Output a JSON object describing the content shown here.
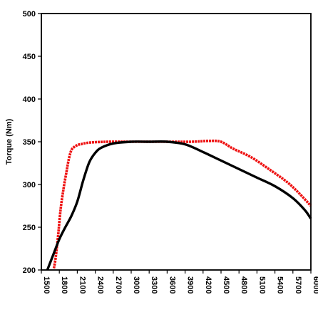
{
  "chart_data": {
    "type": "line",
    "title": "",
    "xlabel": "",
    "ylabel": "Torque (Nm)",
    "xlim": [
      1500,
      6000
    ],
    "ylim": [
      200,
      500
    ],
    "x_ticks": [
      1500,
      1800,
      2100,
      2400,
      2700,
      3000,
      3300,
      3600,
      3900,
      4200,
      4500,
      4800,
      5100,
      5400,
      5700,
      6000
    ],
    "x_tick_labels": [
      "1500",
      "1800",
      "2100",
      "2400",
      "2700",
      "3000",
      "3300",
      "3600",
      "3900",
      "4200",
      "4500",
      "4800",
      "5100",
      "5400",
      "5700",
      "6000"
    ],
    "y_ticks": [
      200,
      250,
      300,
      350,
      400,
      450,
      500
    ],
    "y_tick_labels": [
      "200",
      "250",
      "300",
      "350",
      "400",
      "450",
      "500"
    ],
    "grid": false,
    "legend": "none",
    "series": [
      {
        "color": "#ee1111",
        "x": [
          1710,
          1740,
          1780,
          1820,
          1870,
          1920,
          1960,
          2000,
          2050,
          2100,
          2150,
          2300,
          2600,
          3000,
          3500,
          4000,
          4300,
          4500,
          4700,
          5000,
          5300,
          5600,
          5800,
          6000
        ],
        "y": [
          202,
          215,
          240,
          270,
          295,
          315,
          330,
          340,
          344,
          346,
          347,
          349,
          350,
          350,
          350,
          350,
          351,
          350,
          342,
          332,
          318,
          303,
          290,
          275
        ]
      },
      {
        "color": "#000000",
        "x": [
          1600,
          1700,
          1800,
          1900,
          2000,
          2100,
          2200,
          2300,
          2400,
          2500,
          2700,
          3000,
          3300,
          3600,
          3900,
          4200,
          4500,
          4800,
          5100,
          5400,
          5700,
          5900,
          6000
        ],
        "y": [
          200,
          218,
          236,
          250,
          263,
          280,
          305,
          326,
          337,
          343,
          348,
          350,
          350,
          350,
          347,
          338,
          328,
          318,
          308,
          298,
          284,
          270,
          260
        ]
      }
    ]
  }
}
